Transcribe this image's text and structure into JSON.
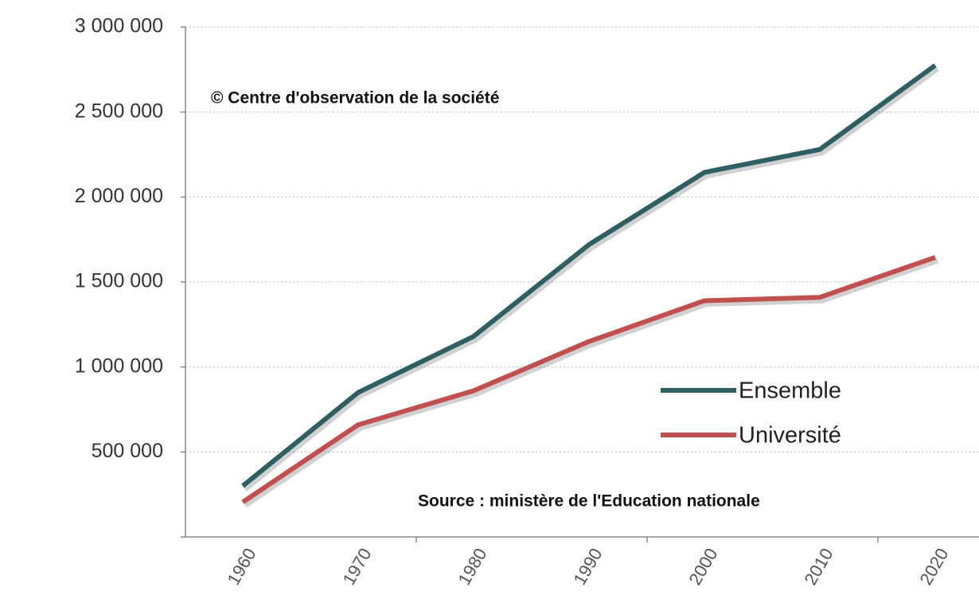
{
  "chart_data": {
    "type": "line",
    "annotations": [
      "© Centre d'observation de la société",
      "Source : ministère de l'Education nationale"
    ],
    "categories": [
      "1960",
      "1970",
      "1980",
      "1990",
      "2000",
      "2010",
      "2020"
    ],
    "series": [
      {
        "name": "Ensemble",
        "color": "#2e5f63",
        "values": [
          300000,
          850000,
          1180000,
          1720000,
          2145000,
          2280000,
          2775000
        ]
      },
      {
        "name": "Université",
        "color": "#c0504d",
        "values": [
          205000,
          660000,
          860000,
          1150000,
          1390000,
          1410000,
          1645000
        ]
      }
    ],
    "ylim": [
      0,
      3000000
    ],
    "yticks": [
      {
        "value": 500000,
        "label": "500 000"
      },
      {
        "value": 1000000,
        "label": "1 000 000"
      },
      {
        "value": 1500000,
        "label": "1 500 000"
      },
      {
        "value": 2000000,
        "label": "2 000 000"
      },
      {
        "value": 2500000,
        "label": "2 500 000"
      },
      {
        "value": 3000000,
        "label": "3 000 000"
      }
    ],
    "grid": true,
    "legend": "lower right"
  }
}
